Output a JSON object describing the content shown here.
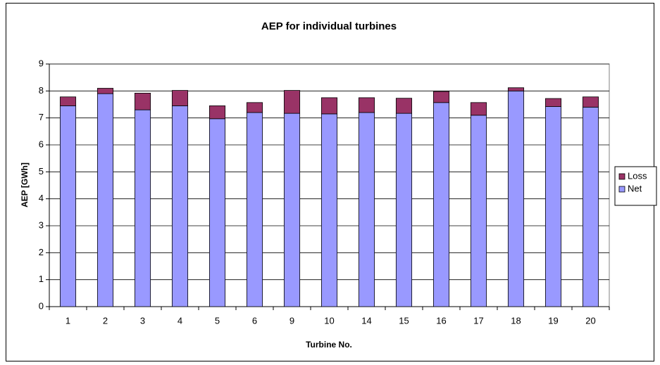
{
  "chart_data": {
    "type": "stacked_bar",
    "title": "AEP for individual turbines",
    "x_label": "Turbine No.",
    "y_label": "AEP [GWh]",
    "categories": [
      "1",
      "2",
      "3",
      "4",
      "5",
      "6",
      "9",
      "10",
      "14",
      "15",
      "16",
      "17",
      "18",
      "19",
      "20"
    ],
    "series": [
      {
        "name": "Net",
        "color": "#9999ff",
        "values": [
          7.45,
          7.9,
          7.3,
          7.45,
          6.97,
          7.2,
          7.17,
          7.15,
          7.2,
          7.17,
          7.57,
          7.1,
          8.0,
          7.42,
          7.4
        ]
      },
      {
        "name": "Loss",
        "color": "#993366",
        "values": [
          0.33,
          0.2,
          0.62,
          0.57,
          0.48,
          0.37,
          0.85,
          0.6,
          0.55,
          0.56,
          0.41,
          0.47,
          0.12,
          0.3,
          0.38
        ]
      }
    ],
    "ylim": [
      0,
      9
    ],
    "yticks": [
      0,
      1,
      2,
      3,
      4,
      5,
      6,
      7,
      8,
      9
    ],
    "grid": true,
    "legend": "right"
  }
}
